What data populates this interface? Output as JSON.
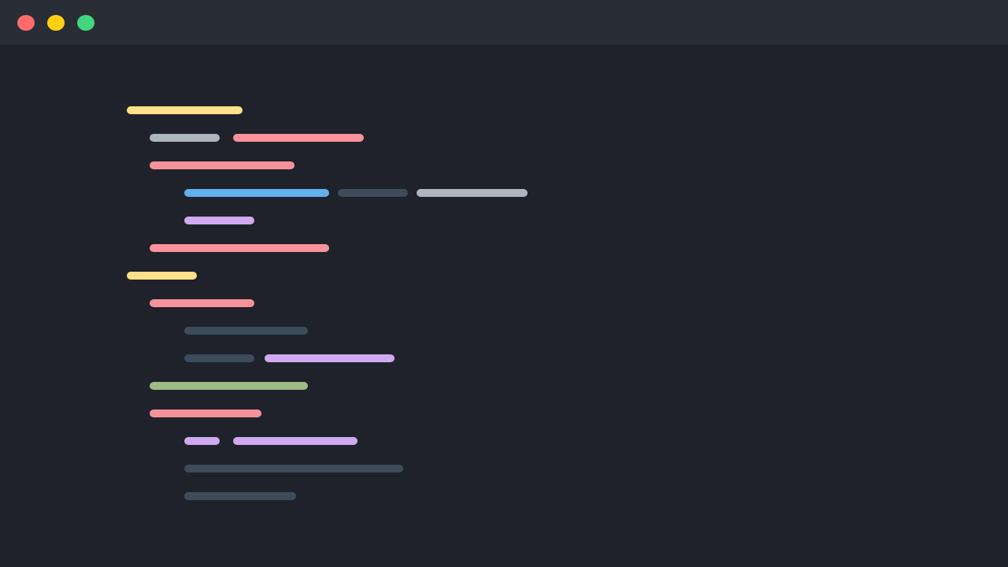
{
  "window": {
    "controls": [
      {
        "name": "close",
        "color": "#ff6b6b"
      },
      {
        "name": "minimize",
        "color": "#ffd110"
      },
      {
        "name": "maximize",
        "color": "#44d67e"
      }
    ]
  },
  "colors": {
    "background": "#1f222a",
    "titlebar": "#282c34",
    "yellow": "#ffe08a",
    "gray": "#adb5c1",
    "pink": "#f7929a",
    "blue": "#62b0ee",
    "dark": "#3c4c5a",
    "purple": "#cfaaf0",
    "green": "#9dbb84"
  },
  "code_lines": [
    [
      "yellow"
    ],
    [
      "gray",
      "pink"
    ],
    [
      "pink"
    ],
    [
      "blue",
      "dark",
      "gray"
    ],
    [
      "purple"
    ],
    [
      "pink"
    ],
    [
      "yellow"
    ],
    [
      "pink"
    ],
    [
      "dark"
    ],
    [
      "dark",
      "purple"
    ],
    [
      "green"
    ],
    [
      "pink"
    ],
    [
      "purple",
      "purple"
    ],
    [
      "dark"
    ],
    [
      "dark"
    ]
  ]
}
